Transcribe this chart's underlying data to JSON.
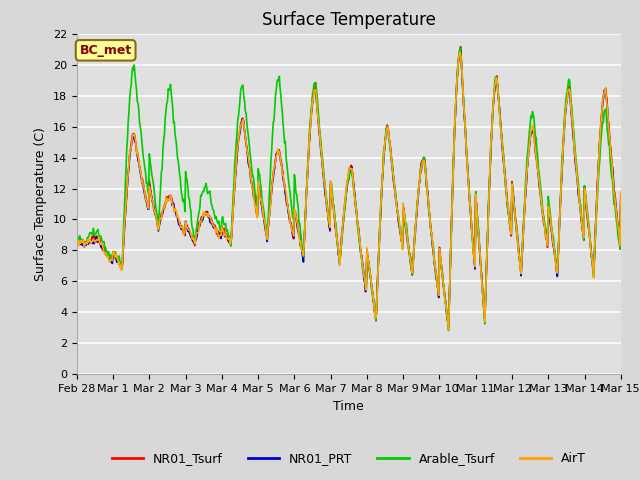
{
  "title": "Surface Temperature",
  "xlabel": "Time",
  "ylabel": "Surface Temperature (C)",
  "ylim": [
    0,
    22
  ],
  "yticks": [
    0,
    2,
    4,
    6,
    8,
    10,
    12,
    14,
    16,
    18,
    20,
    22
  ],
  "xtick_labels": [
    "Feb 28",
    "Mar 1",
    "Mar 2",
    "Mar 3",
    "Mar 4",
    "Mar 5",
    "Mar 6",
    "Mar 7",
    "Mar 8",
    "Mar 9",
    "Mar 10",
    "Mar 11",
    "Mar 12",
    "Mar 13",
    "Mar 14",
    "Mar 15"
  ],
  "fig_facecolor": "#d8d8d8",
  "plot_bg_color": "#e0e0e0",
  "legend_entries": [
    "NR01_Tsurf",
    "NR01_PRT",
    "Arable_Tsurf",
    "AirT"
  ],
  "line_colors": [
    "#ff0000",
    "#0000cc",
    "#00cc00",
    "#ffa500"
  ],
  "annotation_text": "BC_met",
  "annotation_color": "#8b0000",
  "annotation_bg": "#ffff99",
  "annotation_edge": "#8b6914",
  "title_fontsize": 12,
  "label_fontsize": 9,
  "tick_fontsize": 8,
  "legend_fontsize": 9,
  "night_temps": [
    8.5,
    7.0,
    9.5,
    8.5,
    8.5,
    8.8,
    7.5,
    7.2,
    3.5,
    6.5,
    3.0,
    3.5,
    6.5,
    6.5,
    6.5,
    6.0
  ],
  "day_peaks_red": [
    8.8,
    15.5,
    11.5,
    10.5,
    16.5,
    14.5,
    18.5,
    13.5,
    16.0,
    14.0,
    21.0,
    19.2,
    16.0,
    18.5,
    18.5,
    8.0
  ],
  "day_peaks_grn": [
    9.2,
    20.0,
    18.5,
    12.2,
    18.7,
    19.2,
    19.0,
    13.2,
    16.0,
    14.0,
    21.0,
    19.2,
    17.0,
    19.0,
    17.0,
    7.5
  ]
}
